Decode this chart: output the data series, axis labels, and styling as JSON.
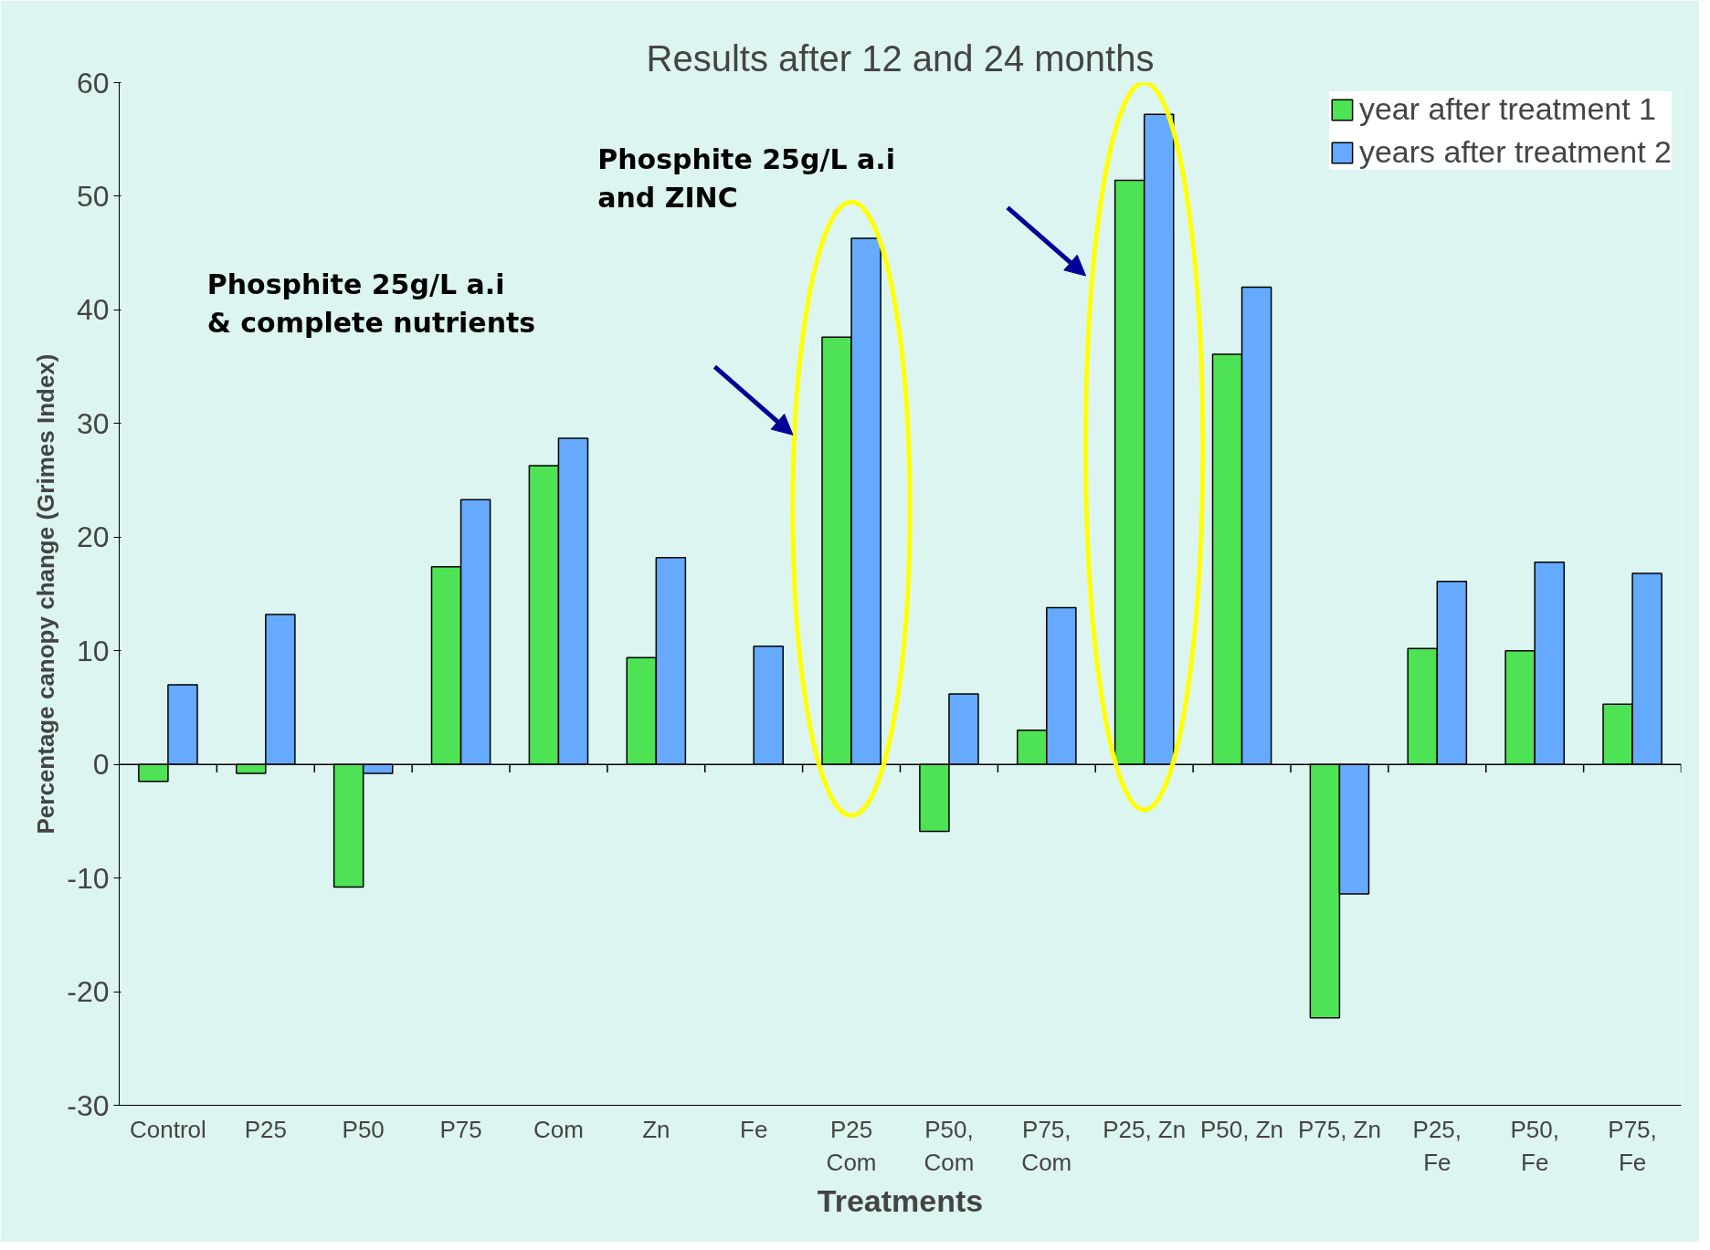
{
  "chart_data": {
    "type": "bar",
    "title": "Results after 12 and 24 months",
    "xlabel": "Treatments",
    "ylabel": "Percentage canopy change (Grimes Index)",
    "categories": [
      "Control",
      "P25",
      "P50",
      "P75",
      "Com",
      "Zn",
      "Fe",
      "P25\nCom",
      "P50,\nCom",
      "P75,\nCom",
      "P25, Zn",
      "P50, Zn",
      "P75, Zn",
      "P25,\nFe",
      "P50,\nFe",
      "P75,\nFe"
    ],
    "series": [
      {
        "name": "year after treatment 1",
        "color": "#4de354",
        "values": [
          -1.5,
          -0.8,
          -10.8,
          17.4,
          26.3,
          9.4,
          null,
          37.6,
          -5.9,
          3.0,
          51.4,
          36.1,
          -22.3,
          10.2,
          10.0,
          5.3
        ]
      },
      {
        "name": "years after treatment 2",
        "color": "#66aaff",
        "values": [
          7.0,
          13.2,
          -0.8,
          23.3,
          28.7,
          18.2,
          10.4,
          46.3,
          6.2,
          13.8,
          57.2,
          42.0,
          -11.4,
          16.1,
          17.8,
          16.8
        ]
      }
    ],
    "ylim": [
      -30,
      60
    ],
    "yticks": [
      -30,
      -20,
      -10,
      0,
      10,
      20,
      30,
      40,
      50,
      60
    ],
    "annotations": [
      "Phosphite 25g/L a.i\n& complete nutrients",
      "Phosphite 25g/L a.i\nand ZINC"
    ],
    "legend": "top right"
  }
}
